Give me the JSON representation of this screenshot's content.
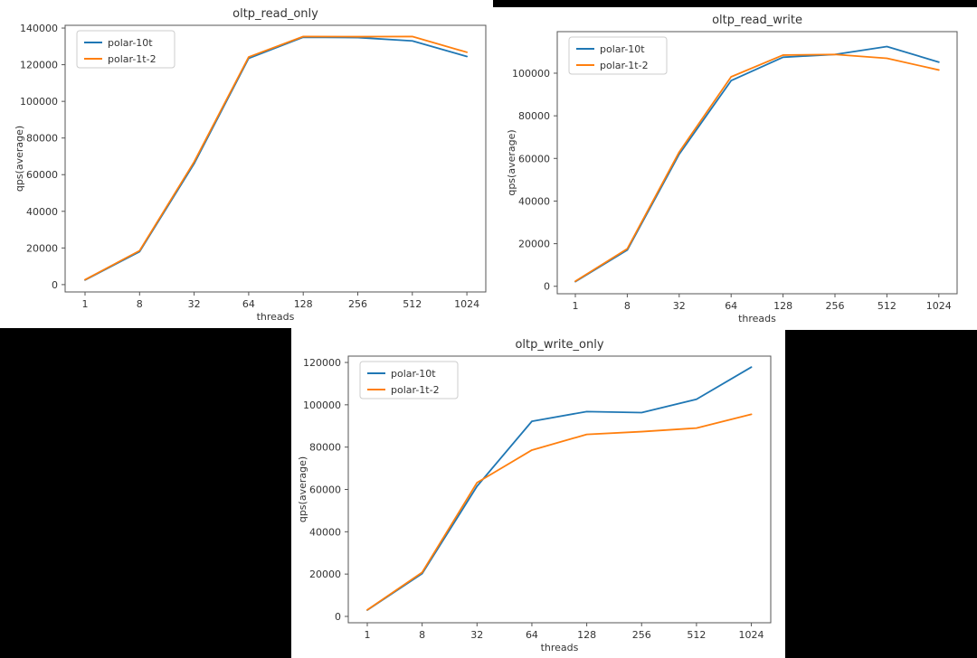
{
  "colors": {
    "blue": "#1f77b4",
    "orange": "#ff7f0e",
    "text": "#333333",
    "spine": "#555555",
    "canvas_bg": "#000000",
    "panel_bg": "#ffffff",
    "legend_border": "#cccccc"
  },
  "chart_data": [
    {
      "type": "line",
      "title": "oltp_read_only",
      "xlabel": "threads",
      "ylabel": "qps(average)",
      "categories": [
        "1",
        "8",
        "32",
        "64",
        "128",
        "256",
        "512",
        "1024"
      ],
      "yticks": [
        0,
        20000,
        40000,
        60000,
        80000,
        100000,
        120000,
        140000
      ],
      "ylim": [
        -4000,
        141500
      ],
      "grid": false,
      "legend_position": "upper-left",
      "series": [
        {
          "name": "polar-10t",
          "color_key": "blue",
          "values": [
            2500,
            18000,
            66000,
            123500,
            135000,
            134800,
            133000,
            124500
          ]
        },
        {
          "name": "polar-1t-2",
          "color_key": "orange",
          "values": [
            2700,
            18500,
            67000,
            124200,
            135400,
            135300,
            135400,
            126800
          ]
        }
      ]
    },
    {
      "type": "line",
      "title": "oltp_read_write",
      "xlabel": "threads",
      "ylabel": "qps(average)",
      "categories": [
        "1",
        "8",
        "32",
        "64",
        "128",
        "256",
        "512",
        "1024"
      ],
      "yticks": [
        0,
        20000,
        40000,
        60000,
        80000,
        100000
      ],
      "ylim": [
        -3500,
        119500
      ],
      "grid": false,
      "legend_position": "upper-left",
      "series": [
        {
          "name": "polar-10t",
          "color_key": "blue",
          "values": [
            2200,
            17000,
            62000,
            96500,
            107500,
            108800,
            112500,
            105200
          ]
        },
        {
          "name": "polar-1t-2",
          "color_key": "orange",
          "values": [
            2400,
            17600,
            63000,
            98300,
            108500,
            108800,
            107000,
            101500
          ]
        }
      ]
    },
    {
      "type": "line",
      "title": "oltp_write_only",
      "xlabel": "threads",
      "ylabel": "qps(average)",
      "categories": [
        "1",
        "8",
        "32",
        "64",
        "128",
        "256",
        "512",
        "1024"
      ],
      "yticks": [
        0,
        20000,
        40000,
        60000,
        80000,
        100000,
        120000
      ],
      "ylim": [
        -3000,
        123000
      ],
      "grid": false,
      "legend_position": "upper-left",
      "series": [
        {
          "name": "polar-10t",
          "color_key": "blue",
          "values": [
            3000,
            20200,
            61500,
            92200,
            96800,
            96300,
            102600,
            117800
          ]
        },
        {
          "name": "polar-1t-2",
          "color_key": "orange",
          "values": [
            3100,
            20800,
            63200,
            78600,
            86000,
            87300,
            89000,
            95500
          ]
        }
      ]
    }
  ]
}
